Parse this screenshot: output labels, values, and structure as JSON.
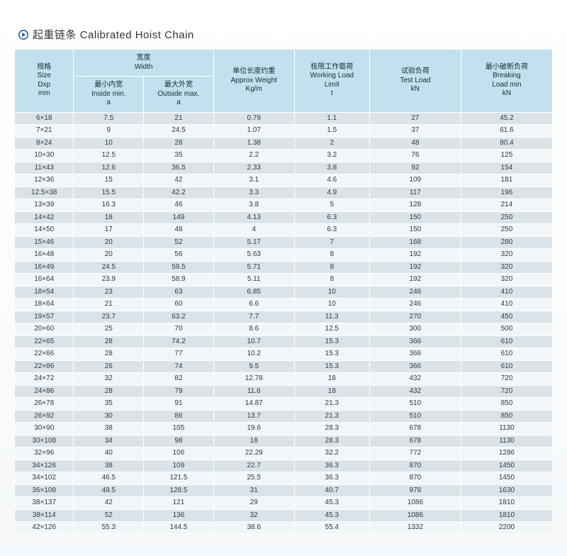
{
  "title": {
    "cn": "起重链条",
    "en": "Calibrated Hoist Chain"
  },
  "headers": {
    "size": {
      "cn": "规格",
      "en": "Size",
      "sub": "Dxp",
      "unit": "mm"
    },
    "width_group": {
      "cn": "宽度",
      "en": "Width"
    },
    "inside": {
      "cn": "最小内宽",
      "en": "Inside min.",
      "sym": "a"
    },
    "outside": {
      "cn": "最大外宽",
      "en": "Outside max.",
      "sym": "a"
    },
    "weight": {
      "cn": "单位长度约重",
      "en": "Approx Weight",
      "unit": "Kg/m"
    },
    "wll": {
      "cn": "极限工作载荷",
      "en": "Working Load",
      "en2": "Limit",
      "unit": "t"
    },
    "test": {
      "cn": "试验负荷",
      "en": "Test Load",
      "unit": "kN"
    },
    "break": {
      "cn": "最小破断负荷",
      "en": "Breaking",
      "en2": "Load min",
      "unit": "kN"
    }
  },
  "colors": {
    "header_bg": "#c2e0ed",
    "row_odd_bg": "#dbe3e8",
    "row_even_bg": "#f3f6f8",
    "border": "#ffffff",
    "title_text": "#333333",
    "cell_text": "#2a3a4a",
    "bullet_fill": "#1f5fa8"
  },
  "rows": [
    {
      "size": "6×18",
      "in": "7.5",
      "out": "21",
      "wt": "0.79",
      "wll": "1.1",
      "test": "27",
      "brk": "45.2"
    },
    {
      "size": "7×21",
      "in": "9",
      "out": "24.5",
      "wt": "1.07",
      "wll": "1.5",
      "test": "37",
      "brk": "61.6"
    },
    {
      "size": "8×24",
      "in": "10",
      "out": "28",
      "wt": "1.38",
      "wll": "2",
      "test": "48",
      "brk": "80.4"
    },
    {
      "size": "10×30",
      "in": "12.5",
      "out": "35",
      "wt": "2.2",
      "wll": "3.2",
      "test": "76",
      "brk": "125"
    },
    {
      "size": "11×43",
      "in": "12.6",
      "out": "36.5",
      "wt": "2.33",
      "wll": "3.8",
      "test": "92",
      "brk": "154"
    },
    {
      "size": "12×36",
      "in": "15",
      "out": "42",
      "wt": "3.1",
      "wll": "4.6",
      "test": "109",
      "brk": "181"
    },
    {
      "size": "12.5×38",
      "in": "15.5",
      "out": "42.2",
      "wt": "3.3",
      "wll": "4.9",
      "test": "117",
      "brk": "196"
    },
    {
      "size": "13×39",
      "in": "16.3",
      "out": "46",
      "wt": "3.8",
      "wll": "5",
      "test": "128",
      "brk": "214"
    },
    {
      "size": "14×42",
      "in": "18",
      "out": "149",
      "wt": "4.13",
      "wll": "6.3",
      "test": "150",
      "brk": "250"
    },
    {
      "size": "14×50",
      "in": "17",
      "out": "48",
      "wt": "4",
      "wll": "6.3",
      "test": "150",
      "brk": "250"
    },
    {
      "size": "15×46",
      "in": "20",
      "out": "52",
      "wt": "5.17",
      "wll": "7",
      "test": "168",
      "brk": "280"
    },
    {
      "size": "16×48",
      "in": "20",
      "out": "56",
      "wt": "5.63",
      "wll": "8",
      "test": "192",
      "brk": "320"
    },
    {
      "size": "16×49",
      "in": "24.5",
      "out": "59.5",
      "wt": "5.71",
      "wll": "8",
      "test": "192",
      "brk": "320"
    },
    {
      "size": "16×64",
      "in": "23.9",
      "out": "58.9",
      "wt": "5.11",
      "wll": "8",
      "test": "192",
      "brk": "320"
    },
    {
      "size": "18×54",
      "in": "23",
      "out": "63",
      "wt": "6.85",
      "wll": "10",
      "test": "246",
      "brk": "410"
    },
    {
      "size": "18×64",
      "in": "21",
      "out": "60",
      "wt": "6.6",
      "wll": "10",
      "test": "246",
      "brk": "410"
    },
    {
      "size": "19×57",
      "in": "23.7",
      "out": "63.2",
      "wt": "7.7",
      "wll": "11.3",
      "test": "270",
      "brk": "450"
    },
    {
      "size": "20×60",
      "in": "25",
      "out": "70",
      "wt": "8.6",
      "wll": "12.5",
      "test": "300",
      "brk": "500"
    },
    {
      "size": "22×65",
      "in": "28",
      "out": "74.2",
      "wt": "10.7",
      "wll": "15.3",
      "test": "366",
      "brk": "610"
    },
    {
      "size": "22×66",
      "in": "28",
      "out": "77",
      "wt": "10.2",
      "wll": "15.3",
      "test": "366",
      "brk": "610"
    },
    {
      "size": "22×86",
      "in": "26",
      "out": "74",
      "wt": "9.5",
      "wll": "15.3",
      "test": "366",
      "brk": "610"
    },
    {
      "size": "24×72",
      "in": "32",
      "out": "82",
      "wt": "12.78",
      "wll": "18",
      "test": "432",
      "brk": "720"
    },
    {
      "size": "24×86",
      "in": "28",
      "out": "79",
      "wt": "11.6",
      "wll": "18",
      "test": "432",
      "brk": "720"
    },
    {
      "size": "26×78",
      "in": "35",
      "out": "91",
      "wt": "14.87",
      "wll": "21.3",
      "test": "510",
      "brk": "850"
    },
    {
      "size": "26×92",
      "in": "30",
      "out": "86",
      "wt": "13.7",
      "wll": "21.3",
      "test": "510",
      "brk": "850"
    },
    {
      "size": "30×90",
      "in": "38",
      "out": "105",
      "wt": "19.6",
      "wll": "28.3",
      "test": "678",
      "brk": "1130"
    },
    {
      "size": "30×108",
      "in": "34",
      "out": "98",
      "wt": "18",
      "wll": "28.3",
      "test": "678",
      "brk": "1130"
    },
    {
      "size": "32×96",
      "in": "40",
      "out": "106",
      "wt": "22.29",
      "wll": "32.2",
      "test": "772",
      "brk": "1286"
    },
    {
      "size": "34×126",
      "in": "38",
      "out": "109",
      "wt": "22.7",
      "wll": "36.3",
      "test": "870",
      "brk": "1450"
    },
    {
      "size": "34×102",
      "in": "46.5",
      "out": "121.5",
      "wt": "25.5",
      "wll": "36.3",
      "test": "870",
      "brk": "1450"
    },
    {
      "size": "36×108",
      "in": "49.5",
      "out": "128.5",
      "wt": "31",
      "wll": "40.7",
      "test": "978",
      "brk": "1630"
    },
    {
      "size": "38×137",
      "in": "42",
      "out": "121",
      "wt": "29",
      "wll": "45.3",
      "test": "1086",
      "brk": "1810"
    },
    {
      "size": "38×114",
      "in": "52",
      "out": "136",
      "wt": "32",
      "wll": "45.3",
      "test": "1086",
      "brk": "1810"
    },
    {
      "size": "42×126",
      "in": "55.3",
      "out": "144.5",
      "wt": "38.6",
      "wll": "55.4",
      "test": "1332",
      "brk": "2200"
    }
  ]
}
